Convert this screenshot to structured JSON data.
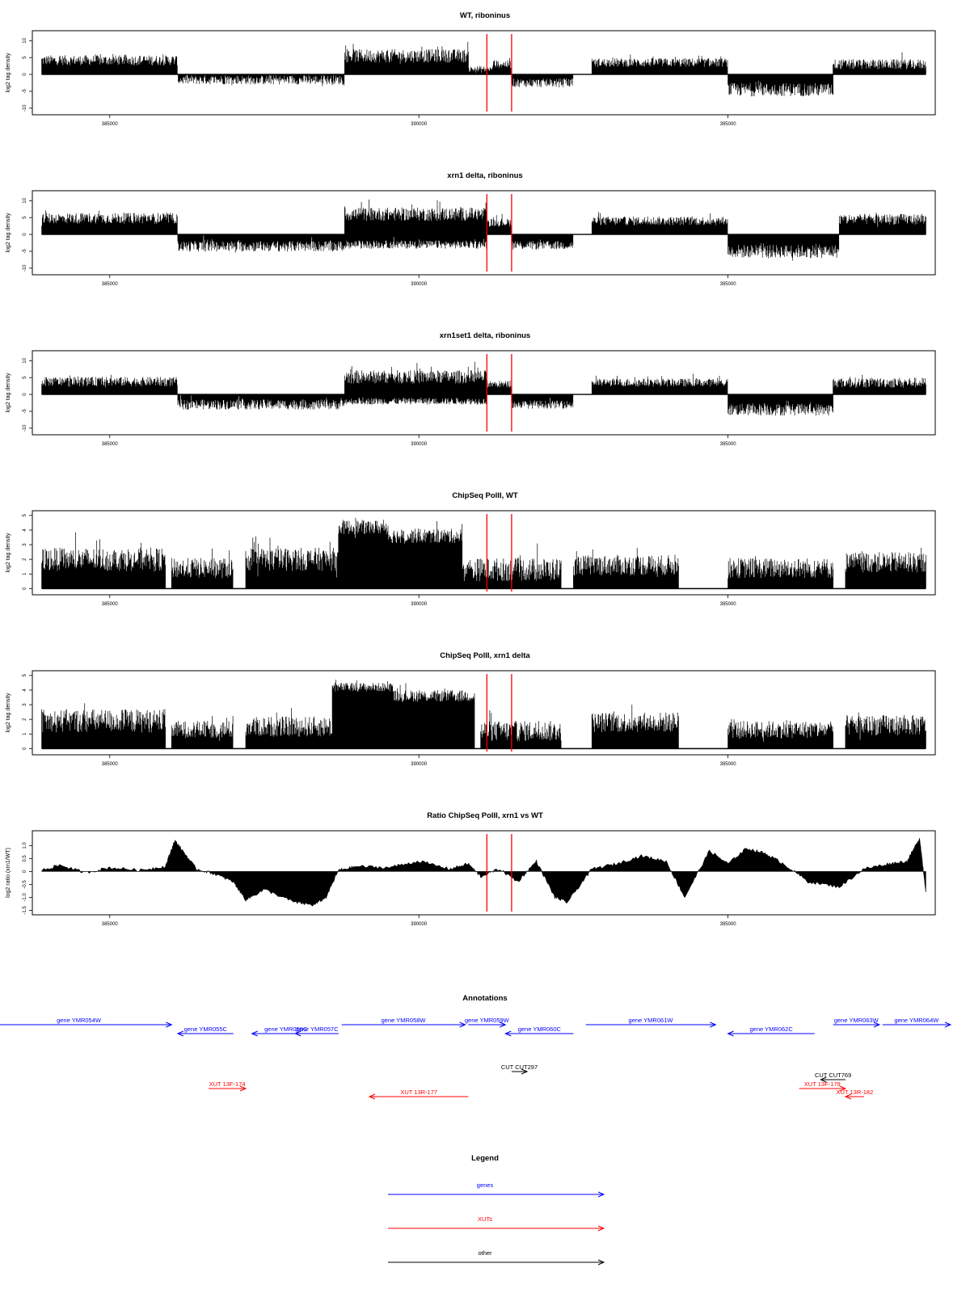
{
  "colors": {
    "gene": "#0000ff",
    "xut": "#ff0000",
    "other": "#000000",
    "marker": "#ff0000",
    "bars": "#000000"
  },
  "chart_data": [
    {
      "type": "bar",
      "title": "WT, riboninus",
      "ylabel": "log2 tag density",
      "xlim": [
        383800,
        398300
      ],
      "ylim": [
        -11,
        12
      ],
      "yticks": [
        "10",
        "5",
        "0",
        "-5",
        "-10"
      ],
      "xticks": [
        "385000",
        "390000",
        "395000"
      ],
      "markers_x": [
        391100,
        391500
      ],
      "segments": [
        {
          "from": 383900,
          "to": 386100,
          "mean": 4.2,
          "amp": 1.5
        },
        {
          "from": 386100,
          "to": 388800,
          "mean": -1.6,
          "amp": 1.4
        },
        {
          "from": 388800,
          "to": 390800,
          "mean": 5.5,
          "amp": 2.0
        },
        {
          "from": 390800,
          "to": 391200,
          "mean": 1.5,
          "amp": 1.0
        },
        {
          "from": 391200,
          "to": 391500,
          "mean": 3.0,
          "amp": 1.2
        },
        {
          "from": 391500,
          "to": 392500,
          "mean": -2.5,
          "amp": 1.3
        },
        {
          "from": 392800,
          "to": 395000,
          "mean": 3.5,
          "amp": 1.3
        },
        {
          "from": 395000,
          "to": 396700,
          "mean": -4.5,
          "amp": 2.0
        },
        {
          "from": 396700,
          "to": 398200,
          "mean": 3.0,
          "amp": 1.5
        }
      ]
    },
    {
      "type": "bar",
      "title": "xrn1 delta, riboninus",
      "ylabel": "log2 tag density",
      "xlim": [
        383800,
        398300
      ],
      "ylim": [
        -11,
        12
      ],
      "yticks": [
        "10",
        "5",
        "0",
        "-5",
        "-10"
      ],
      "xticks": [
        "385000",
        "390000",
        "395000"
      ],
      "markers_x": [
        391100,
        391500
      ],
      "segments": [
        {
          "from": 383900,
          "to": 386100,
          "mean": 4.8,
          "amp": 1.6
        },
        {
          "from": 386100,
          "to": 388800,
          "mean": -3.5,
          "amp": 1.6
        },
        {
          "from": 388800,
          "to": 391100,
          "mean": 6.0,
          "amp": 2.0
        },
        {
          "from": 388800,
          "to": 391100,
          "mean": -3.0,
          "amp": 1.2
        },
        {
          "from": 391100,
          "to": 391500,
          "mean": 3.5,
          "amp": 1.2
        },
        {
          "from": 391500,
          "to": 392500,
          "mean": -3.2,
          "amp": 1.3
        },
        {
          "from": 392800,
          "to": 395000,
          "mean": 4.0,
          "amp": 1.3
        },
        {
          "from": 395000,
          "to": 396800,
          "mean": -5.0,
          "amp": 2.0
        },
        {
          "from": 396800,
          "to": 398200,
          "mean": 4.5,
          "amp": 1.6
        }
      ]
    },
    {
      "type": "bar",
      "title": "xrn1set1 delta, riboninus",
      "ylabel": "log2 tag density",
      "xlim": [
        383800,
        398300
      ],
      "ylim": [
        -11,
        12
      ],
      "yticks": [
        "10",
        "5",
        "0",
        "-5",
        "-10"
      ],
      "xticks": [
        "385000",
        "390000",
        "395000"
      ],
      "markers_x": [
        391100,
        391500
      ],
      "segments": [
        {
          "from": 383900,
          "to": 386100,
          "mean": 3.8,
          "amp": 1.4
        },
        {
          "from": 386100,
          "to": 388800,
          "mean": -3.0,
          "amp": 1.5
        },
        {
          "from": 388800,
          "to": 391100,
          "mean": 5.2,
          "amp": 2.0
        },
        {
          "from": 388800,
          "to": 391100,
          "mean": -2.0,
          "amp": 1.0
        },
        {
          "from": 391100,
          "to": 391500,
          "mean": 3.0,
          "amp": 1.0
        },
        {
          "from": 391500,
          "to": 392500,
          "mean": -3.0,
          "amp": 1.2
        },
        {
          "from": 392800,
          "to": 395000,
          "mean": 3.5,
          "amp": 1.2
        },
        {
          "from": 395000,
          "to": 396700,
          "mean": -4.5,
          "amp": 1.8
        },
        {
          "from": 396700,
          "to": 398200,
          "mean": 3.5,
          "amp": 1.5
        }
      ]
    },
    {
      "type": "bar",
      "title": "ChipSeq PolII, WT",
      "ylabel": "log2 tag density",
      "xlim": [
        383800,
        398300
      ],
      "ylim": [
        -0.2,
        5.1
      ],
      "yticks": [
        "5",
        "4",
        "3",
        "2",
        "1",
        "0"
      ],
      "xticks": [
        "385000",
        "390000",
        "395000"
      ],
      "markers_x": [
        391100,
        391500
      ],
      "segments": [
        {
          "from": 383900,
          "to": 385900,
          "mean": 2.0,
          "amp": 0.8
        },
        {
          "from": 386000,
          "to": 387000,
          "mean": 1.4,
          "amp": 0.7
        },
        {
          "from": 387200,
          "to": 388700,
          "mean": 2.0,
          "amp": 0.8
        },
        {
          "from": 388700,
          "to": 389500,
          "mean": 4.2,
          "amp": 0.5
        },
        {
          "from": 389500,
          "to": 390700,
          "mean": 3.6,
          "amp": 0.5
        },
        {
          "from": 390700,
          "to": 392300,
          "mean": 1.3,
          "amp": 0.8
        },
        {
          "from": 392500,
          "to": 394200,
          "mean": 1.6,
          "amp": 0.7
        },
        {
          "from": 395000,
          "to": 396700,
          "mean": 1.4,
          "amp": 0.7
        },
        {
          "from": 396900,
          "to": 398200,
          "mean": 1.8,
          "amp": 0.7
        }
      ]
    },
    {
      "type": "bar",
      "title": "ChipSeq PolII, xrn1 delta",
      "ylabel": "log2 tag density",
      "xlim": [
        383800,
        398300
      ],
      "ylim": [
        -0.2,
        5.1
      ],
      "yticks": [
        "5",
        "4",
        "3",
        "2",
        "1",
        "0"
      ],
      "xticks": [
        "385000",
        "390000",
        "395000"
      ],
      "markers_x": [
        391100,
        391500
      ],
      "segments": [
        {
          "from": 383900,
          "to": 385900,
          "mean": 1.9,
          "amp": 0.8
        },
        {
          "from": 386000,
          "to": 387000,
          "mean": 1.3,
          "amp": 0.6
        },
        {
          "from": 387200,
          "to": 388600,
          "mean": 1.5,
          "amp": 0.7
        },
        {
          "from": 388600,
          "to": 389600,
          "mean": 4.2,
          "amp": 0.3
        },
        {
          "from": 389600,
          "to": 390900,
          "mean": 3.6,
          "amp": 0.4
        },
        {
          "from": 391000,
          "to": 392300,
          "mean": 1.2,
          "amp": 0.7
        },
        {
          "from": 392800,
          "to": 394200,
          "mean": 1.8,
          "amp": 0.7
        },
        {
          "from": 395000,
          "to": 396700,
          "mean": 1.3,
          "amp": 0.6
        },
        {
          "from": 396900,
          "to": 398200,
          "mean": 1.6,
          "amp": 0.7
        }
      ]
    },
    {
      "type": "area",
      "title": "Ratio ChipSeq PolII, xrn1 vs WT",
      "ylabel": "log2 ratio (xrn1/WT)",
      "xlim": [
        383800,
        398300
      ],
      "ylim": [
        -1.55,
        1.45
      ],
      "yticks": [
        "1.0",
        "0.5",
        "0",
        "-0.5",
        "-1.0",
        "-1.5"
      ],
      "xticks": [
        "385000",
        "390000",
        "395000"
      ],
      "markers_x": [
        391100,
        391500
      ],
      "x": [
        383900,
        384200,
        384600,
        385000,
        385500,
        385900,
        386050,
        386150,
        386400,
        386700,
        387000,
        387200,
        387500,
        388000,
        388300,
        388500,
        388700,
        389000,
        389500,
        390000,
        390500,
        390800,
        391000,
        391300,
        391600,
        391900,
        392200,
        392400,
        392800,
        393200,
        393600,
        394000,
        394300,
        394700,
        395000,
        395300,
        395600,
        395900,
        396300,
        396800,
        397200,
        397600,
        397900,
        398100,
        398200
      ],
      "values": [
        0.05,
        0.25,
        -0.05,
        0.15,
        0.05,
        0.2,
        1.2,
        0.9,
        0.1,
        -0.1,
        -0.4,
        -1.1,
        -0.7,
        -1.2,
        -1.3,
        -1.0,
        0.05,
        0.2,
        0.15,
        0.4,
        0.1,
        0.3,
        -0.2,
        0.1,
        -0.4,
        0.4,
        -1.0,
        -1.2,
        0.1,
        0.3,
        0.6,
        0.4,
        -1.0,
        0.8,
        0.3,
        0.9,
        0.7,
        0.3,
        -0.4,
        -0.6,
        0.1,
        0.3,
        0.4,
        1.3,
        -0.8
      ]
    }
  ],
  "annotations": {
    "title": "Annotations",
    "items": [
      {
        "label": "gene YMR054W",
        "kind": "gene",
        "from": 383000,
        "to": 386000,
        "strand": "+",
        "row": 0
      },
      {
        "label": "gene YMR055C",
        "kind": "gene",
        "from": 386100,
        "to": 387000,
        "strand": "-",
        "row": 1
      },
      {
        "label": "gene YMR056C",
        "kind": "gene",
        "from": 387300,
        "to": 388400,
        "strand": "-",
        "row": 1
      },
      {
        "label": "gene YMR057C",
        "kind": "gene",
        "from": 388000,
        "to": 388700,
        "strand": "-",
        "row": 1
      },
      {
        "label": "gene YMR058W",
        "kind": "gene",
        "from": 388750,
        "to": 390750,
        "strand": "+",
        "row": 0
      },
      {
        "label": "gene YMR059W",
        "kind": "gene",
        "from": 390800,
        "to": 391400,
        "strand": "+",
        "row": 0
      },
      {
        "label": "gene YMR060C",
        "kind": "gene",
        "from": 391400,
        "to": 392500,
        "strand": "-",
        "row": 1
      },
      {
        "label": "gene YMR061W",
        "kind": "gene",
        "from": 392700,
        "to": 394800,
        "strand": "+",
        "row": 0
      },
      {
        "label": "gene YMR062C",
        "kind": "gene",
        "from": 395000,
        "to": 396400,
        "strand": "-",
        "row": 1
      },
      {
        "label": "gene YMR063W",
        "kind": "gene",
        "from": 396700,
        "to": 397450,
        "strand": "+",
        "row": 0
      },
      {
        "label": "gene YMR064W",
        "kind": "gene",
        "from": 397500,
        "to": 398600,
        "strand": "+",
        "row": 0
      },
      {
        "label": "CUT CUT297",
        "kind": "other",
        "from": 391500,
        "to": 391750,
        "strand": "+",
        "row": 2
      },
      {
        "label": "CUT CUT769",
        "kind": "other",
        "from": 396500,
        "to": 396900,
        "strand": "-",
        "row": 3
      },
      {
        "label": "XUT 13F-174",
        "kind": "xut",
        "from": 386600,
        "to": 387200,
        "strand": "+",
        "row": 4
      },
      {
        "label": "XUT 13R-177",
        "kind": "xut",
        "from": 389200,
        "to": 390800,
        "strand": "-",
        "row": 5
      },
      {
        "label": "XUT 13F-179",
        "kind": "xut",
        "from": 396150,
        "to": 396900,
        "strand": "+",
        "row": 4
      },
      {
        "label": "XUT 13R-182",
        "kind": "xut",
        "from": 396900,
        "to": 397200,
        "strand": "-",
        "row": 5
      }
    ]
  },
  "legend": {
    "title": "Legend",
    "items": [
      {
        "label": "genes",
        "kind": "gene"
      },
      {
        "label": "XUTs",
        "kind": "xut"
      },
      {
        "label": "other",
        "kind": "other"
      }
    ]
  }
}
